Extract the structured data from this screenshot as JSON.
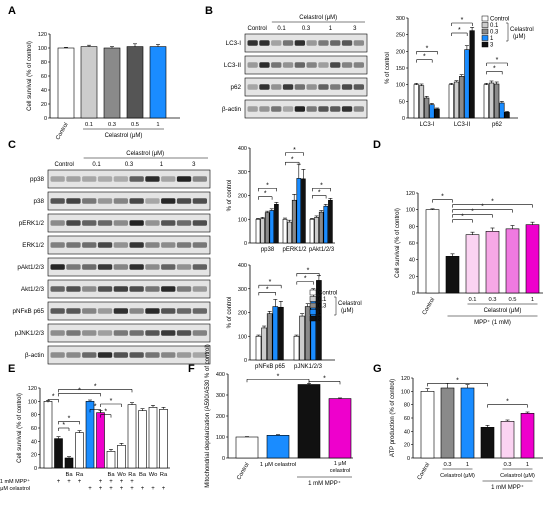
{
  "panels": [
    {
      "letter": "A"
    },
    {
      "letter": "B"
    },
    {
      "letter": "C"
    },
    {
      "letter": "D"
    },
    {
      "letter": "E"
    },
    {
      "letter": "F"
    },
    {
      "letter": "G"
    }
  ],
  "colors": {
    "white": "#ffffff",
    "light_gray": "#cccccc",
    "gray": "#8a8a8a",
    "dark_gray": "#555555",
    "blue": "#1a8cff",
    "black": "#111111",
    "light_pink": "#fbd3f2",
    "pink": "#f07ae0",
    "magenta": "#ee00cc"
  },
  "chart_data": [
    {
      "panel": "A",
      "type": "bar",
      "categories": [
        "Control",
        "0.1",
        "0.3",
        "0.5",
        "1"
      ],
      "values": [
        100,
        102,
        100,
        102,
        102
      ],
      "errors": [
        1,
        2,
        2,
        4,
        3
      ],
      "colors": [
        "#ffffff",
        "#cccccc",
        "#8a8a8a",
        "#555555",
        "#1a8cff"
      ],
      "ylabel": "Cell survival (% of control)",
      "xlabel": "Celastrol (μM)",
      "ylim": [
        0,
        120
      ],
      "yticks": [
        0,
        20,
        40,
        60,
        80,
        100,
        120
      ]
    },
    {
      "panel": "B",
      "type": "bar",
      "categories": [
        "LC3-I",
        "LC3-II",
        "p62"
      ],
      "series": [
        {
          "name": "Control",
          "values": [
            100,
            100,
            100
          ],
          "errors": [
            4,
            4,
            4
          ]
        },
        {
          "name": "0.1",
          "values": [
            97,
            108,
            105
          ],
          "errors": [
            5,
            4,
            6
          ]
        },
        {
          "name": "0.3",
          "values": [
            60,
            125,
            102
          ],
          "errors": [
            5,
            5,
            6
          ]
        },
        {
          "name": "1",
          "values": [
            40,
            205,
            45
          ],
          "errors": [
            4,
            12,
            5
          ]
        },
        {
          "name": "3",
          "values": [
            27,
            262,
            17
          ],
          "errors": [
            3,
            10,
            3
          ]
        }
      ],
      "legend_unit": "Celastrol (μM)",
      "ylabel": "% of control",
      "ylim": [
        0,
        300
      ],
      "yticks": [
        0,
        50,
        100,
        150,
        200,
        250,
        300
      ]
    },
    {
      "panel": "C1",
      "type": "bar",
      "categories": [
        "pp38",
        "pERK1/2",
        "pAkt1/2/3"
      ],
      "series": [
        {
          "name": "Control",
          "values": [
            100,
            100,
            100
          ],
          "errors": [
            4,
            5,
            4
          ]
        },
        {
          "name": "0.1",
          "values": [
            103,
            88,
            108
          ],
          "errors": [
            5,
            8,
            6
          ]
        },
        {
          "name": "0.3",
          "values": [
            128,
            180,
            130
          ],
          "errors": [
            6,
            25,
            7
          ]
        },
        {
          "name": "1",
          "values": [
            137,
            272,
            155
          ],
          "errors": [
            7,
            60,
            8
          ]
        },
        {
          "name": "3",
          "values": [
            163,
            270,
            180
          ],
          "errors": [
            8,
            40,
            8
          ]
        }
      ],
      "ylabel": "% of control",
      "ylim": [
        0,
        400
      ],
      "yticks": [
        0,
        100,
        200,
        300,
        400
      ]
    },
    {
      "panel": "C2",
      "type": "bar",
      "categories": [
        "pNFκB p65",
        "pJNK1/2/3"
      ],
      "series": [
        {
          "name": "Control",
          "values": [
            100,
            100
          ],
          "errors": [
            5,
            5
          ]
        },
        {
          "name": "0.1",
          "values": [
            135,
            185
          ],
          "errors": [
            8,
            10
          ]
        },
        {
          "name": "0.3",
          "values": [
            195,
            225
          ],
          "errors": [
            10,
            12
          ]
        },
        {
          "name": "1",
          "values": [
            225,
            265
          ],
          "errors": [
            30,
            35
          ]
        },
        {
          "name": "3",
          "values": [
            222,
            335
          ],
          "errors": [
            25,
            20
          ]
        }
      ],
      "legend_unit": "Celastrol (μM)",
      "ylabel": "% of control",
      "ylim": [
        0,
        400
      ],
      "yticks": [
        0,
        100,
        200,
        300,
        400
      ]
    },
    {
      "panel": "D",
      "type": "bar",
      "categories": [
        "Control",
        "",
        "0.1",
        "0.3",
        "0.5",
        "1"
      ],
      "values": [
        100,
        44,
        70,
        74,
        77,
        82
      ],
      "errors": [
        1,
        3,
        3,
        4,
        4,
        3
      ],
      "colors": [
        "#ffffff",
        "#111111",
        "#fbd3f2",
        "#f6a8e6",
        "#f07ae0",
        "#ee00cc"
      ],
      "ylabel": "Cell survival (% of control)",
      "xlabel": "Celastrol (μM)",
      "xlabel2": "MPP⁺ (1 mM)",
      "ylim": [
        0,
        120
      ],
      "yticks": [
        0,
        20,
        40,
        60,
        80,
        100,
        120
      ]
    },
    {
      "panel": "E",
      "type": "bar",
      "categories": [
        "",
        "",
        "Ba",
        "Ra",
        "",
        "",
        "Ba",
        "Wo",
        "Ra",
        "Ba",
        "Wo",
        "Ra"
      ],
      "values": [
        100,
        44,
        15,
        53,
        100,
        83,
        25,
        34,
        95,
        86,
        91,
        88
      ],
      "errors": [
        1,
        3,
        2,
        3,
        2,
        3,
        3,
        3,
        3,
        3,
        3,
        3
      ],
      "colors": [
        "#ffffff",
        "#111111",
        "#111111",
        "#ffffff",
        "#1a8cff",
        "#ee00cc",
        "#ffffff",
        "#ffffff",
        "#ffffff",
        "#ffffff",
        "#ffffff",
        "#ffffff"
      ],
      "ylabel": "Cell survival (% of control)",
      "row_labels": [
        "1 mM MPP⁺",
        "1 μM celastrol"
      ],
      "mpp_row": [
        "-",
        "+",
        "+",
        "+",
        "-",
        "+",
        "+",
        "+",
        "+",
        "-",
        "-",
        "-"
      ],
      "cel_row": [
        "-",
        "-",
        "-",
        "-",
        "+",
        "+",
        "+",
        "+",
        "+",
        "+",
        "+",
        "+"
      ],
      "ylim": [
        0,
        120
      ],
      "yticks": [
        0,
        20,
        40,
        60,
        80,
        100,
        120
      ]
    },
    {
      "panel": "F",
      "type": "bar",
      "categories": [
        "Control",
        "1 μM celastrol",
        "",
        ""
      ],
      "values": [
        100,
        108,
        350,
        283
      ],
      "errors": [
        2,
        3,
        4,
        3
      ],
      "colors": [
        "#ffffff",
        "#1a8cff",
        "#111111",
        "#ee00cc"
      ],
      "ylabel": "Mitochondrial depolarization (A590/A530 % of control)",
      "group_label": "1 mM MPP⁺",
      "sub_label": "1 μM celastrol",
      "ylim": [
        0,
        400
      ],
      "yticks": [
        0,
        100,
        200,
        300,
        400
      ]
    },
    {
      "panel": "G",
      "type": "bar",
      "categories": [
        "Control",
        "0.3",
        "1",
        "",
        "0.3",
        "1"
      ],
      "values": [
        100,
        105,
        105,
        46,
        55,
        67
      ],
      "errors": [
        4,
        7,
        5,
        3,
        2,
        2
      ],
      "colors": [
        "#ffffff",
        "#8a8a8a",
        "#1a8cff",
        "#111111",
        "#fbd3f2",
        "#ee00cc"
      ],
      "ylabel": "ATP production (% of control)",
      "xlabel": "Celastrol (μM)",
      "xlabel2": "1 mM MPP⁺",
      "ylim": [
        0,
        120
      ],
      "yticks": [
        0,
        20,
        40,
        60,
        80,
        100,
        120
      ]
    }
  ],
  "blots": {
    "B": {
      "header": "Celastrol (μM)",
      "lanes": [
        "Control",
        "0.1",
        "0.3",
        "1",
        "3"
      ],
      "rows": [
        "LC3-I",
        "LC3-II",
        "p62",
        "β-actin"
      ]
    },
    "C": {
      "header": "Celastrol (μM)",
      "lanes": [
        "Control",
        "0.1",
        "0.3",
        "1",
        "3"
      ],
      "rows": [
        "pp38",
        "p38",
        "pERK1/2",
        "ERK1/2",
        "pAkt1/2/3",
        "Akt1/2/3",
        "pNFκB p65",
        "pJNK1/2/3",
        "β-actin"
      ]
    }
  },
  "legend": {
    "title": "Celastrol (μM)",
    "entries": [
      "Control",
      "0.1",
      "0.3",
      "1",
      "3"
    ]
  },
  "significance": "*"
}
